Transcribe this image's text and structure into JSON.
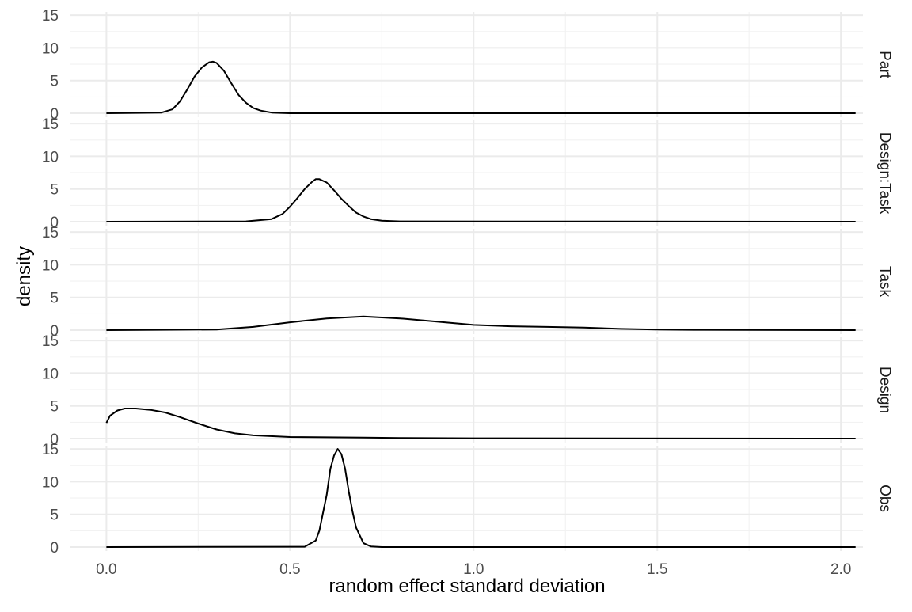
{
  "chart_data": {
    "type": "line",
    "xlabel": "random effect standard deviation",
    "ylabel": "density",
    "xlim": [
      -0.1,
      2.06
    ],
    "ylim": [
      -0.6,
      15.5
    ],
    "x_ticks": [
      0,
      0.5,
      1,
      1.5,
      2
    ],
    "x_tick_labels": [
      "0.0",
      "0.5",
      "1.0",
      "1.5",
      "2.0"
    ],
    "y_ticks": [
      0,
      5,
      10,
      15
    ],
    "y_tick_labels": [
      "0",
      "5",
      "10",
      "15"
    ],
    "grid": true,
    "facets": [
      {
        "name": "Part",
        "x": [
          0.0,
          0.15,
          0.18,
          0.2,
          0.22,
          0.24,
          0.26,
          0.28,
          0.29,
          0.3,
          0.32,
          0.34,
          0.36,
          0.38,
          0.4,
          0.42,
          0.45,
          0.5,
          2.04
        ],
        "y": [
          0,
          0.1,
          0.6,
          1.8,
          3.6,
          5.6,
          7.0,
          7.8,
          7.9,
          7.7,
          6.5,
          4.6,
          2.8,
          1.6,
          0.8,
          0.4,
          0.1,
          0,
          0
        ]
      },
      {
        "name": "Design:Task",
        "x": [
          0.0,
          0.38,
          0.45,
          0.48,
          0.5,
          0.52,
          0.54,
          0.56,
          0.57,
          0.58,
          0.6,
          0.62,
          0.64,
          0.66,
          0.68,
          0.7,
          0.72,
          0.75,
          0.8,
          2.04
        ],
        "y": [
          0,
          0.05,
          0.4,
          1.2,
          2.3,
          3.6,
          5.0,
          6.1,
          6.5,
          6.5,
          6.0,
          4.8,
          3.5,
          2.4,
          1.4,
          0.8,
          0.4,
          0.15,
          0.05,
          0
        ]
      },
      {
        "name": "Task",
        "x": [
          0.0,
          0.3,
          0.4,
          0.5,
          0.6,
          0.7,
          0.8,
          0.9,
          1.0,
          1.1,
          1.2,
          1.3,
          1.4,
          1.5,
          1.6,
          2.04
        ],
        "y": [
          0,
          0.1,
          0.5,
          1.2,
          1.8,
          2.1,
          1.8,
          1.3,
          0.8,
          0.6,
          0.5,
          0.4,
          0.2,
          0.1,
          0.05,
          0
        ]
      },
      {
        "name": "Design",
        "x": [
          0.0,
          0.01,
          0.03,
          0.05,
          0.08,
          0.12,
          0.16,
          0.2,
          0.25,
          0.3,
          0.35,
          0.4,
          0.5,
          0.6,
          0.7,
          0.8,
          1.0,
          2.04
        ],
        "y": [
          2.4,
          3.5,
          4.3,
          4.6,
          4.6,
          4.4,
          4.0,
          3.3,
          2.3,
          1.4,
          0.8,
          0.5,
          0.25,
          0.2,
          0.15,
          0.1,
          0.05,
          0
        ]
      },
      {
        "name": "Obs",
        "x": [
          0.0,
          0.54,
          0.57,
          0.58,
          0.6,
          0.61,
          0.62,
          0.63,
          0.64,
          0.65,
          0.66,
          0.67,
          0.68,
          0.7,
          0.72,
          0.75,
          2.04
        ],
        "y": [
          0,
          0.05,
          1.0,
          2.5,
          8.0,
          12.0,
          14.0,
          15.0,
          14.2,
          12.0,
          8.5,
          5.5,
          3.0,
          0.6,
          0.1,
          0,
          0
        ]
      }
    ]
  }
}
